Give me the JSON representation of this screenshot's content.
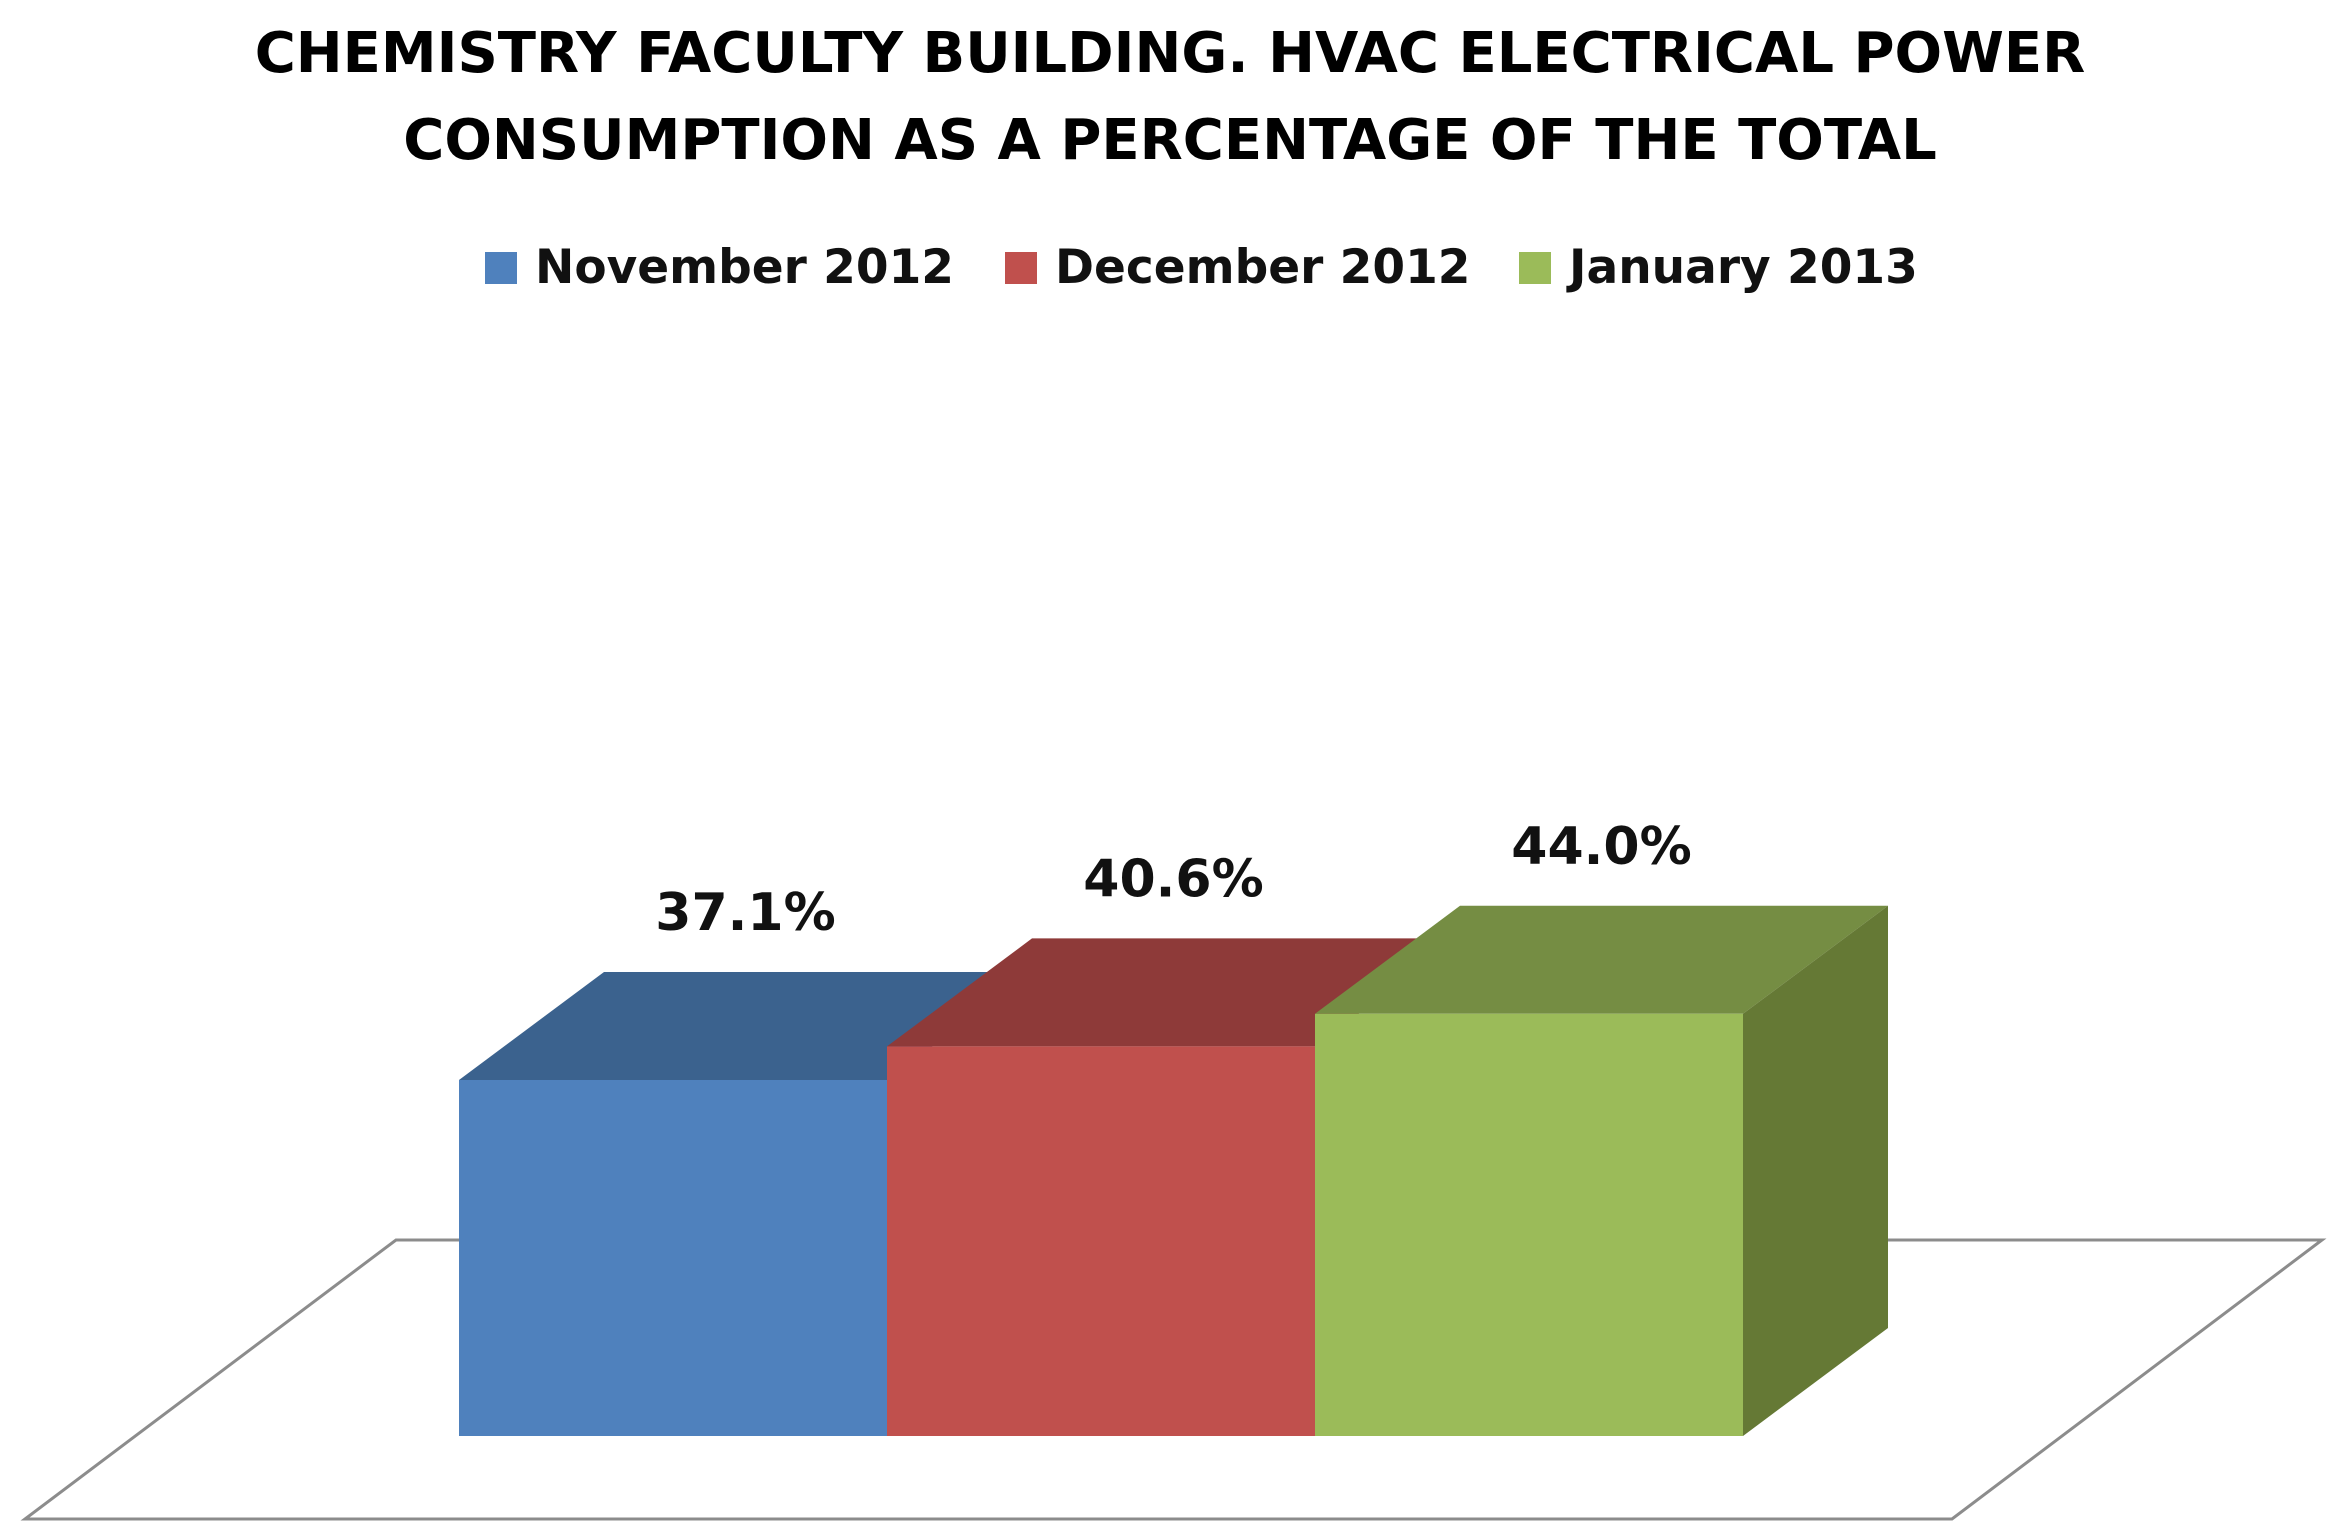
{
  "chart_data": {
    "type": "bar",
    "title_lines": [
      "CHEMISTRY FACULTY BUILDING. HVAC ELECTRICAL POWER",
      "CONSUMPTION AS A PERCENTAGE OF THE TOTAL"
    ],
    "style": "3d",
    "grid": false,
    "legend_position": "top",
    "series": [
      {
        "name": "November 2012",
        "value": 37.1,
        "label": "37.1%",
        "color": "#4F81BD",
        "top_color": "#3B628E",
        "side_color": "#36597F"
      },
      {
        "name": "December 2012",
        "value": 40.6,
        "label": "40.6%",
        "color": "#C0504D",
        "top_color": "#8E3A39",
        "side_color": "#803432"
      },
      {
        "name": "January 2013",
        "value": 44.0,
        "label": "44.0%",
        "color": "#9BBB59",
        "top_color": "#758D43",
        "side_color": "#657935"
      }
    ]
  }
}
